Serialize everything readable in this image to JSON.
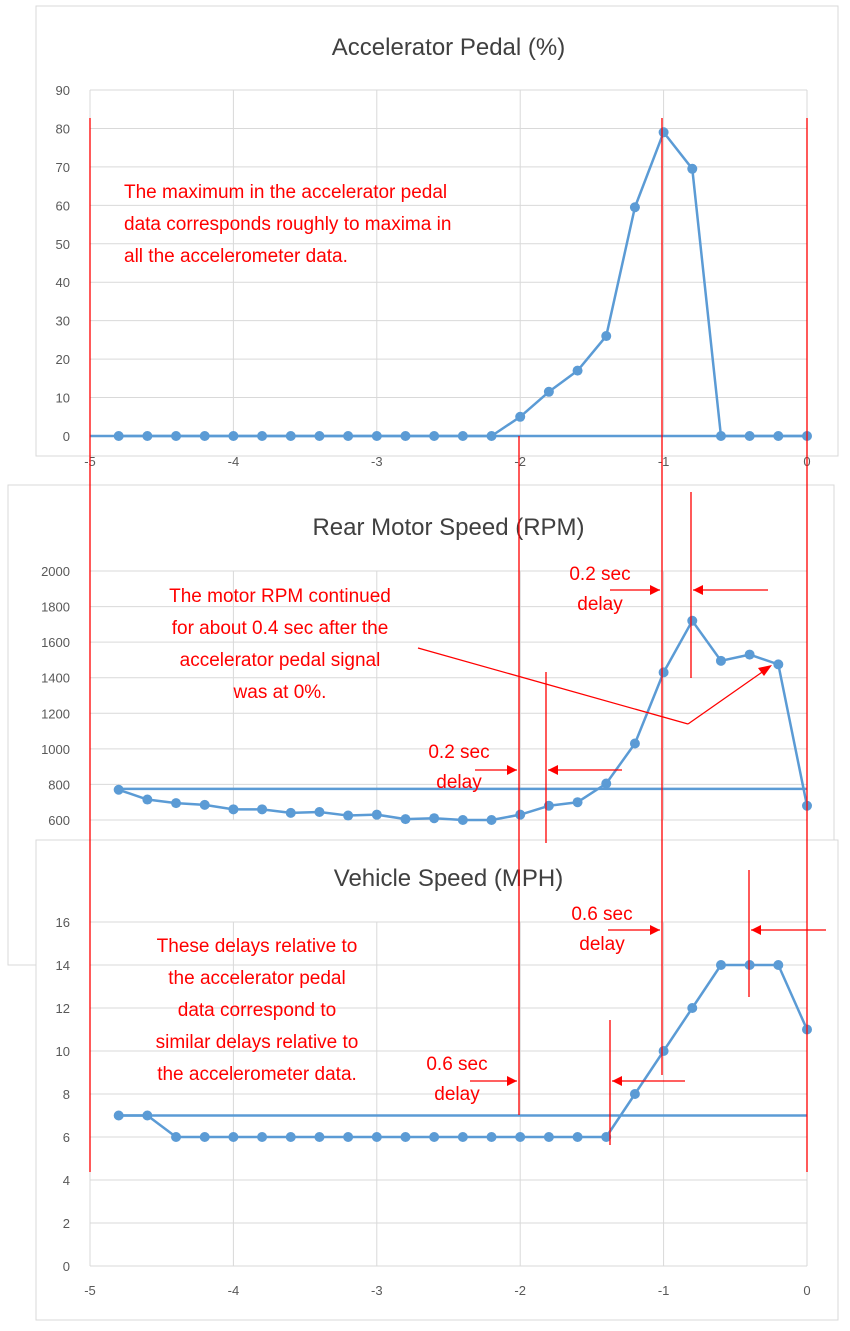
{
  "chart_data": [
    {
      "type": "line",
      "title": "Accelerator Pedal (%)",
      "xlim": [
        -5,
        0
      ],
      "ylim": [
        0,
        90
      ],
      "xticks": [
        -5,
        -4,
        -3,
        -2,
        -1,
        0
      ],
      "yticks": [
        0,
        10,
        20,
        30,
        40,
        50,
        60,
        70,
        80,
        90
      ],
      "grid": true,
      "x": [
        -4.8,
        -4.6,
        -4.4,
        -4.2,
        -4.0,
        -3.8,
        -3.6,
        -3.4,
        -3.2,
        -3.0,
        -2.8,
        -2.6,
        -2.4,
        -2.2,
        -2.0,
        -1.8,
        -1.6,
        -1.4,
        -1.2,
        -1.0,
        -0.8,
        -0.6,
        -0.4,
        -0.2,
        0.0
      ],
      "series": [
        {
          "values": [
            0,
            0,
            0,
            0,
            0,
            0,
            0,
            0,
            0,
            0,
            0,
            0,
            0,
            0,
            5,
            11.5,
            17,
            26,
            59.5,
            79,
            69.5,
            0,
            0,
            0,
            0
          ]
        }
      ],
      "color": "#5b9bd5"
    },
    {
      "type": "line",
      "title": "Rear Motor Speed (RPM)",
      "xlim": [
        -5,
        0
      ],
      "ylim": [
        600,
        2000
      ],
      "yticks": [
        600,
        800,
        1000,
        1200,
        1400,
        1600,
        1800,
        2000
      ],
      "grid": true,
      "x": [
        -4.8,
        -4.6,
        -4.4,
        -4.2,
        -4.0,
        -3.8,
        -3.6,
        -3.4,
        -3.2,
        -3.0,
        -2.8,
        -2.6,
        -2.4,
        -2.2,
        -2.0,
        -1.8,
        -1.6,
        -1.4,
        -1.2,
        -1.0,
        -0.8,
        -0.6,
        -0.4,
        -0.2,
        0.0
      ],
      "series": [
        {
          "values": [
            770,
            715,
            695,
            685,
            660,
            660,
            640,
            645,
            625,
            630,
            605,
            610,
            600,
            600,
            630,
            680,
            700,
            805,
            1030,
            1430,
            1720,
            1495,
            1530,
            1475,
            680
          ]
        }
      ],
      "reference_line": 775,
      "color": "#5b9bd5"
    },
    {
      "type": "line",
      "title": "Vehicle Speed (MPH)",
      "xlim": [
        -5,
        0
      ],
      "ylim": [
        0,
        16
      ],
      "xticks": [
        -5,
        -4,
        -3,
        -2,
        -1,
        0
      ],
      "yticks": [
        0,
        2,
        4,
        6,
        8,
        10,
        12,
        14,
        16
      ],
      "grid": true,
      "x": [
        -4.8,
        -4.6,
        -4.4,
        -4.2,
        -4.0,
        -3.8,
        -3.6,
        -3.4,
        -3.2,
        -3.0,
        -2.8,
        -2.6,
        -2.4,
        -2.2,
        -2.0,
        -1.8,
        -1.6,
        -1.4,
        -1.2,
        -1.0,
        -0.8,
        -0.6,
        -0.4,
        -0.2,
        0.0
      ],
      "series": [
        {
          "values": [
            7,
            7,
            6,
            6,
            6,
            6,
            6,
            6,
            6,
            6,
            6,
            6,
            6,
            6,
            6,
            6,
            6,
            6,
            8,
            10,
            12,
            14,
            14,
            14,
            11
          ]
        }
      ],
      "reference_line": 7,
      "color": "#5b9bd5"
    }
  ],
  "annotations": {
    "pedal_note": [
      "The maximum in the accelerator pedal",
      "data corresponds roughly to maxima in",
      "all the accelerometer data."
    ],
    "rpm_note": [
      "The motor RPM continued",
      "for about 0.4 sec after the",
      "accelerator pedal signal",
      "was at 0%."
    ],
    "speed_note": [
      "These delays relative to",
      "the accelerator pedal",
      "data correspond to",
      "similar delays relative to",
      "the accelerometer data."
    ],
    "rpm_delay_right": [
      "0.2 sec",
      "delay"
    ],
    "rpm_delay_left": [
      "0.2 sec",
      "delay"
    ],
    "speed_delay_right": [
      "0.6 sec",
      "delay"
    ],
    "speed_delay_left": [
      "0.6 sec",
      "delay"
    ],
    "color": "#ff0000"
  }
}
